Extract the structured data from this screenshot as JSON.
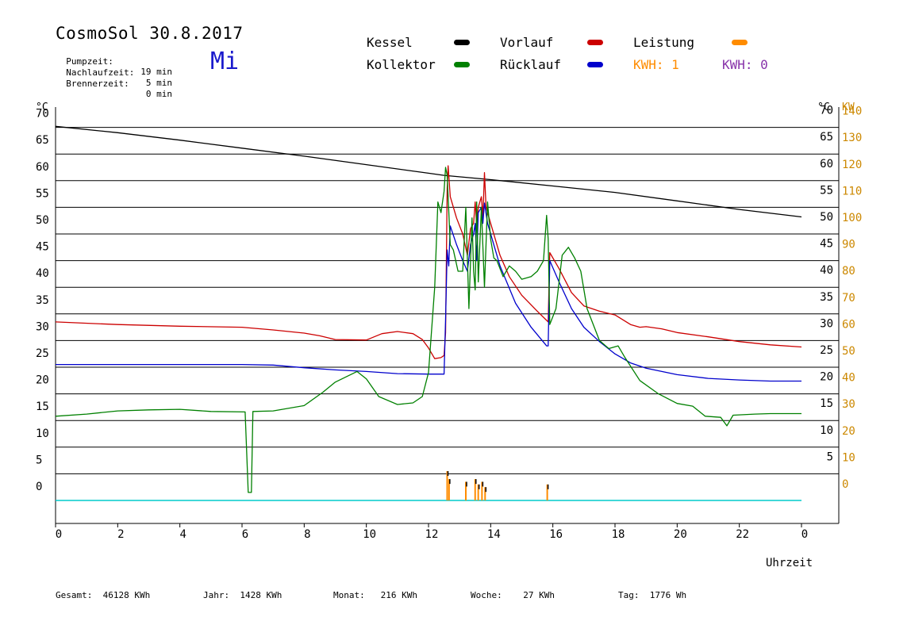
{
  "header": {
    "title": "CosmoSol 30.8.2017",
    "weekday": "Mi",
    "pump_label": "Pumpzeit:",
    "pump_value": "19 min",
    "nachlauf_label": "Nachlaufzeit:",
    "nachlauf_value": "5 min",
    "brenner_label": "Brennerzeit:",
    "brenner_value": "0 min"
  },
  "legend": {
    "kessel": "Kessel",
    "kollektor": "Kollektor",
    "vorlauf": "Vorlauf",
    "ruecklauf": "Rücklauf",
    "leistung": "Leistung",
    "kwh1": "KWH: 1",
    "kwh2": "KWH: 0"
  },
  "colors": {
    "kessel": "#000000",
    "kollektor": "#008000",
    "vorlauf": "#cc0000",
    "ruecklauf": "#0000cc",
    "leistung": "#ff8c00",
    "kwh2": "#8833aa",
    "baseline": "#00cccc",
    "right_kw_axis": "#cc8800",
    "weekday": "#1a1acc"
  },
  "footer": {
    "gesamt_label": "Gesamt:",
    "gesamt_value": "46128 KWh",
    "jahr_label": "Jahr:",
    "jahr_value": "1428 KWh",
    "monat_label": "Monat:",
    "monat_value": "216 KWh",
    "woche_label": "Woche:",
    "woche_value": "27 KWh",
    "tag_label": "Tag:",
    "tag_value": "1776 Wh"
  },
  "chart_data": {
    "type": "line",
    "xlabel": "Uhrzeit",
    "ylabel_left": "°C",
    "ylabel_right_temp": "°C",
    "ylabel_right_power": "KW",
    "xlim": [
      0,
      24
    ],
    "ylim": [
      0,
      70
    ],
    "y2lim": [
      0,
      140
    ],
    "x_ticks": [
      "0",
      "2",
      "4",
      "6",
      "8",
      "10",
      "12",
      "14",
      "16",
      "18",
      "20",
      "22",
      "0"
    ],
    "y_ticks": [
      0,
      5,
      10,
      15,
      20,
      25,
      30,
      35,
      40,
      45,
      50,
      55,
      60,
      65,
      70
    ],
    "y_right_ticks": [
      5,
      10,
      15,
      20,
      25,
      30,
      35,
      40,
      45,
      50,
      55,
      60,
      65,
      70
    ],
    "y2_ticks": [
      0,
      10,
      20,
      30,
      40,
      50,
      60,
      70,
      80,
      90,
      100,
      110,
      120,
      130,
      140
    ],
    "grid": "horizontal",
    "series": [
      {
        "name": "Kessel",
        "key": "kessel",
        "points": [
          [
            0,
            70.2
          ],
          [
            2,
            69
          ],
          [
            4,
            67.6
          ],
          [
            6,
            66.1
          ],
          [
            8,
            64.6
          ],
          [
            10,
            63
          ],
          [
            12,
            61.4
          ],
          [
            12.5,
            61
          ],
          [
            14,
            60.2
          ],
          [
            16,
            59
          ],
          [
            18,
            57.8
          ],
          [
            20,
            56.2
          ],
          [
            22,
            54.6
          ],
          [
            24,
            53.2
          ]
        ]
      },
      {
        "name": "Vorlauf",
        "key": "vorlauf",
        "points": [
          [
            0,
            33.5
          ],
          [
            2,
            33
          ],
          [
            4,
            32.7
          ],
          [
            6,
            32.5
          ],
          [
            7,
            32
          ],
          [
            8,
            31.4
          ],
          [
            8.5,
            30.9
          ],
          [
            9,
            30.2
          ],
          [
            10,
            30.1
          ],
          [
            10.5,
            31.3
          ],
          [
            11,
            31.7
          ],
          [
            11.5,
            31.3
          ],
          [
            11.8,
            30.2
          ],
          [
            12,
            28.6
          ],
          [
            12.2,
            26.6
          ],
          [
            12.4,
            26.8
          ],
          [
            12.5,
            27.2
          ],
          [
            12.55,
            31.5
          ],
          [
            12.6,
            58.5
          ],
          [
            12.63,
            62.8
          ],
          [
            12.7,
            57
          ],
          [
            12.9,
            53
          ],
          [
            13.1,
            50
          ],
          [
            13.25,
            46
          ],
          [
            13.35,
            51
          ],
          [
            13.45,
            52
          ],
          [
            13.5,
            56
          ],
          [
            13.55,
            51.5
          ],
          [
            13.6,
            55
          ],
          [
            13.7,
            57
          ],
          [
            13.75,
            53
          ],
          [
            13.8,
            61.5
          ],
          [
            13.85,
            55
          ],
          [
            14,
            52
          ],
          [
            14.3,
            46
          ],
          [
            14.6,
            42
          ],
          [
            15,
            38.5
          ],
          [
            15.5,
            35.5
          ],
          [
            15.85,
            33.5
          ],
          [
            15.9,
            46.5
          ],
          [
            16.2,
            43.5
          ],
          [
            16.6,
            39
          ],
          [
            17,
            36.5
          ],
          [
            17.5,
            35.5
          ],
          [
            18,
            34.8
          ],
          [
            18.5,
            33
          ],
          [
            18.8,
            32.5
          ],
          [
            19,
            32.6
          ],
          [
            19.5,
            32.2
          ],
          [
            20,
            31.5
          ],
          [
            21,
            30.7
          ],
          [
            22,
            29.8
          ],
          [
            23,
            29.2
          ],
          [
            24,
            28.8
          ]
        ]
      },
      {
        "name": "Rücklauf",
        "key": "ruecklauf",
        "points": [
          [
            0,
            25.5
          ],
          [
            2,
            25.5
          ],
          [
            4,
            25.5
          ],
          [
            6,
            25.5
          ],
          [
            7,
            25.4
          ],
          [
            8,
            24.9
          ],
          [
            9,
            24.5
          ],
          [
            10,
            24.2
          ],
          [
            11,
            23.8
          ],
          [
            12,
            23.7
          ],
          [
            12.5,
            23.7
          ],
          [
            12.55,
            34
          ],
          [
            12.6,
            47
          ],
          [
            12.65,
            44
          ],
          [
            12.7,
            51.5
          ],
          [
            12.9,
            48
          ],
          [
            13.1,
            45
          ],
          [
            13.25,
            43
          ],
          [
            13.35,
            48
          ],
          [
            13.45,
            50
          ],
          [
            13.5,
            52
          ],
          [
            13.55,
            45
          ],
          [
            13.6,
            54
          ],
          [
            13.7,
            55
          ],
          [
            13.75,
            52
          ],
          [
            13.8,
            55.8
          ],
          [
            13.9,
            52
          ],
          [
            14.3,
            44
          ],
          [
            14.8,
            37
          ],
          [
            15.3,
            32.5
          ],
          [
            15.8,
            29
          ],
          [
            15.85,
            29
          ],
          [
            15.9,
            45
          ],
          [
            16.2,
            41
          ],
          [
            16.6,
            36
          ],
          [
            17,
            32.5
          ],
          [
            17.5,
            29.8
          ],
          [
            18,
            27.5
          ],
          [
            18.5,
            25.8
          ],
          [
            19,
            24.8
          ],
          [
            20,
            23.6
          ],
          [
            21,
            22.9
          ],
          [
            22,
            22.6
          ],
          [
            23,
            22.4
          ],
          [
            24,
            22.4
          ]
        ]
      },
      {
        "name": "Kollektor",
        "key": "kollektor",
        "points": [
          [
            0,
            15.8
          ],
          [
            1,
            16.2
          ],
          [
            2,
            16.8
          ],
          [
            3,
            17
          ],
          [
            4,
            17.1
          ],
          [
            5,
            16.7
          ],
          [
            6.1,
            16.6
          ],
          [
            6.2,
            1.5
          ],
          [
            6.3,
            1.5
          ],
          [
            6.35,
            16.7
          ],
          [
            7,
            16.8
          ],
          [
            8,
            17.8
          ],
          [
            8.6,
            20.3
          ],
          [
            9,
            22.2
          ],
          [
            9.7,
            24.2
          ],
          [
            10,
            22.8
          ],
          [
            10.4,
            19.5
          ],
          [
            11,
            18
          ],
          [
            11.5,
            18.3
          ],
          [
            11.8,
            19.5
          ],
          [
            12,
            24
          ],
          [
            12.2,
            40
          ],
          [
            12.3,
            56
          ],
          [
            12.4,
            54
          ],
          [
            12.5,
            58
          ],
          [
            12.55,
            62.5
          ],
          [
            12.6,
            61
          ],
          [
            12.7,
            48
          ],
          [
            12.8,
            47
          ],
          [
            12.95,
            43
          ],
          [
            13.1,
            43
          ],
          [
            13.2,
            55
          ],
          [
            13.3,
            36
          ],
          [
            13.4,
            53
          ],
          [
            13.45,
            43
          ],
          [
            13.5,
            39.5
          ],
          [
            13.55,
            56
          ],
          [
            13.6,
            41
          ],
          [
            13.7,
            55
          ],
          [
            13.8,
            40
          ],
          [
            13.9,
            56
          ],
          [
            14,
            49
          ],
          [
            14.1,
            45.5
          ],
          [
            14.2,
            45
          ],
          [
            14.4,
            42
          ],
          [
            14.6,
            44
          ],
          [
            14.8,
            43
          ],
          [
            15,
            41.5
          ],
          [
            15.3,
            42
          ],
          [
            15.5,
            43
          ],
          [
            15.7,
            45
          ],
          [
            15.8,
            53.5
          ],
          [
            15.85,
            49
          ],
          [
            15.9,
            33
          ],
          [
            16.1,
            36
          ],
          [
            16.3,
            46
          ],
          [
            16.5,
            47.5
          ],
          [
            16.7,
            45.5
          ],
          [
            16.9,
            43
          ],
          [
            17.1,
            36
          ],
          [
            17.5,
            30
          ],
          [
            17.8,
            28.5
          ],
          [
            18.1,
            29
          ],
          [
            18.3,
            27
          ],
          [
            18.8,
            22.5
          ],
          [
            19.4,
            20
          ],
          [
            20,
            18.2
          ],
          [
            20.5,
            17.7
          ],
          [
            20.9,
            15.8
          ],
          [
            21.4,
            15.6
          ],
          [
            21.6,
            14
          ],
          [
            21.8,
            16
          ],
          [
            22.5,
            16.2
          ],
          [
            23,
            16.3
          ],
          [
            24,
            16.3
          ]
        ]
      }
    ],
    "leistung_bars": [
      {
        "x": 12.6,
        "kw": 11
      },
      {
        "x": 12.66,
        "kw": 8
      },
      {
        "x": 13.2,
        "kw": 7
      },
      {
        "x": 13.5,
        "kw": 8
      },
      {
        "x": 13.6,
        "kw": 6
      },
      {
        "x": 13.72,
        "kw": 7
      },
      {
        "x": 13.82,
        "kw": 5
      },
      {
        "x": 15.82,
        "kw": 6
      }
    ]
  }
}
